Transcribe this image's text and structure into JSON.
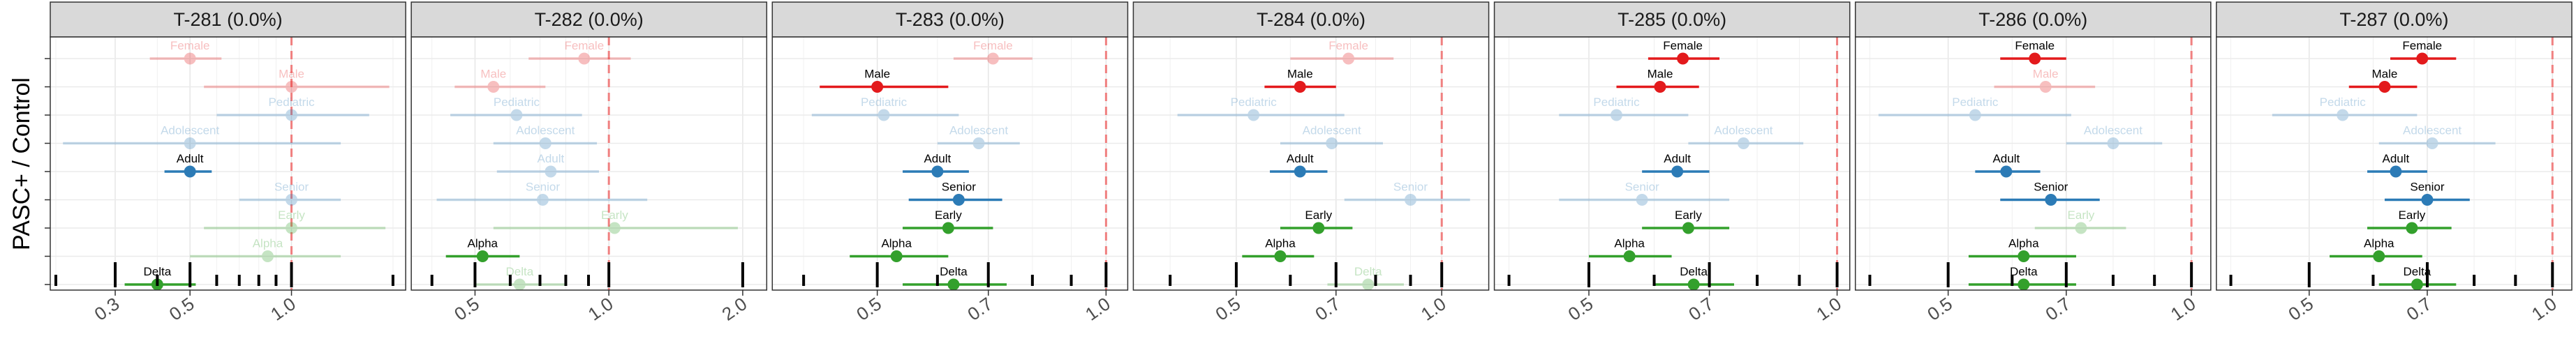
{
  "chart_data": {
    "type": "forest",
    "ylabel": "PASC+ / Control",
    "xscale": "log",
    "reference_line": 1.0,
    "grid": true,
    "categories": [
      "Female",
      "Male",
      "Pediatric",
      "Adolescent",
      "Adult",
      "Senior",
      "Early",
      "Alpha",
      "Delta"
    ],
    "colors": {
      "Female": "#e31a1c",
      "Male": "#e31a1c",
      "Pediatric": "#2c7bb6",
      "Adolescent": "#2c7bb6",
      "Adult": "#2c7bb6",
      "Senior": "#2c7bb6",
      "Early": "#33a02c",
      "Alpha": "#33a02c",
      "Delta": "#33a02c"
    },
    "panels": [
      {
        "title": "T-281 (0.0%)",
        "xlim": [
          0.2,
          2.1
        ],
        "ticks": [
          0.3,
          0.5,
          1.0
        ],
        "tick_labels": [
          "0.3",
          "0.5",
          "1.0"
        ],
        "minor_ticks": [
          0.2,
          0.4,
          0.6,
          0.7,
          0.8,
          0.9,
          2.0
        ],
        "points": [
          {
            "label": "Female",
            "est": 0.5,
            "lo": 0.38,
            "hi": 0.62,
            "sig": false
          },
          {
            "label": "Male",
            "est": 1.0,
            "lo": 0.55,
            "hi": 1.95,
            "sig": false
          },
          {
            "label": "Pediatric",
            "est": 1.0,
            "lo": 0.6,
            "hi": 1.7,
            "sig": false
          },
          {
            "label": "Adolescent",
            "est": 0.5,
            "lo": 0.21,
            "hi": 1.4,
            "sig": false
          },
          {
            "label": "Adult",
            "est": 0.5,
            "lo": 0.42,
            "hi": 0.58,
            "sig": true
          },
          {
            "label": "Senior",
            "est": 1.0,
            "lo": 0.7,
            "hi": 1.4,
            "sig": false
          },
          {
            "label": "Early",
            "est": 1.0,
            "lo": 0.55,
            "hi": 1.9,
            "sig": false
          },
          {
            "label": "Alpha",
            "est": 0.85,
            "lo": 0.5,
            "hi": 1.4,
            "sig": false
          },
          {
            "label": "Delta",
            "est": 0.4,
            "lo": 0.32,
            "hi": 0.52,
            "sig": true
          }
        ]
      },
      {
        "title": "T-282 (0.0%)",
        "xlim": [
          0.37,
          2.2
        ],
        "ticks": [
          0.5,
          1.0,
          2.0
        ],
        "tick_labels": [
          "0.5",
          "1.0",
          "2.0"
        ],
        "minor_ticks": [
          0.4,
          0.6,
          0.7,
          0.8,
          0.9
        ],
        "points": [
          {
            "label": "Female",
            "est": 0.88,
            "lo": 0.66,
            "hi": 1.12,
            "sig": false
          },
          {
            "label": "Male",
            "est": 0.55,
            "lo": 0.45,
            "hi": 0.72,
            "sig": false
          },
          {
            "label": "Pediatric",
            "est": 0.62,
            "lo": 0.44,
            "hi": 0.87,
            "sig": false
          },
          {
            "label": "Adolescent",
            "est": 0.72,
            "lo": 0.55,
            "hi": 0.94,
            "sig": false
          },
          {
            "label": "Adult",
            "est": 0.74,
            "lo": 0.56,
            "hi": 0.95,
            "sig": false
          },
          {
            "label": "Senior",
            "est": 0.71,
            "lo": 0.41,
            "hi": 1.22,
            "sig": false
          },
          {
            "label": "Early",
            "est": 1.03,
            "lo": 0.55,
            "hi": 1.95,
            "sig": false
          },
          {
            "label": "Alpha",
            "est": 0.52,
            "lo": 0.43,
            "hi": 0.63,
            "sig": true
          },
          {
            "label": "Delta",
            "est": 0.63,
            "lo": 0.5,
            "hi": 0.8,
            "sig": false
          }
        ]
      },
      {
        "title": "T-283 (0.0%)",
        "xlim": [
          0.37,
          1.05
        ],
        "ticks": [
          0.5,
          0.7,
          1.0
        ],
        "tick_labels": [
          "0.5",
          "0.7",
          "1.0"
        ],
        "minor_ticks": [
          0.4,
          0.6,
          0.8,
          0.9
        ],
        "points": [
          {
            "label": "Female",
            "est": 0.71,
            "lo": 0.63,
            "hi": 0.8,
            "sig": false
          },
          {
            "label": "Male",
            "est": 0.5,
            "lo": 0.42,
            "hi": 0.62,
            "sig": true
          },
          {
            "label": "Pediatric",
            "est": 0.51,
            "lo": 0.41,
            "hi": 0.64,
            "sig": false
          },
          {
            "label": "Adolescent",
            "est": 0.68,
            "lo": 0.6,
            "hi": 0.77,
            "sig": false
          },
          {
            "label": "Adult",
            "est": 0.6,
            "lo": 0.54,
            "hi": 0.66,
            "sig": true
          },
          {
            "label": "Senior",
            "est": 0.64,
            "lo": 0.55,
            "hi": 0.73,
            "sig": true
          },
          {
            "label": "Early",
            "est": 0.62,
            "lo": 0.54,
            "hi": 0.71,
            "sig": true
          },
          {
            "label": "Alpha",
            "est": 0.53,
            "lo": 0.46,
            "hi": 0.62,
            "sig": true
          },
          {
            "label": "Delta",
            "est": 0.63,
            "lo": 0.54,
            "hi": 0.74,
            "sig": true
          }
        ]
      },
      {
        "title": "T-284 (0.0%)",
        "xlim": [
          0.36,
          1.15
        ],
        "ticks": [
          0.5,
          0.7,
          1.0
        ],
        "tick_labels": [
          "0.5",
          "0.7",
          "1.0"
        ],
        "minor_ticks": [
          0.4,
          0.6,
          0.8,
          0.9
        ],
        "points": [
          {
            "label": "Female",
            "est": 0.73,
            "lo": 0.6,
            "hi": 0.85,
            "sig": false
          },
          {
            "label": "Male",
            "est": 0.62,
            "lo": 0.55,
            "hi": 0.7,
            "sig": true
          },
          {
            "label": "Pediatric",
            "est": 0.53,
            "lo": 0.41,
            "hi": 0.72,
            "sig": false
          },
          {
            "label": "Adolescent",
            "est": 0.69,
            "lo": 0.58,
            "hi": 0.82,
            "sig": false
          },
          {
            "label": "Adult",
            "est": 0.62,
            "lo": 0.56,
            "hi": 0.68,
            "sig": true
          },
          {
            "label": "Senior",
            "est": 0.9,
            "lo": 0.72,
            "hi": 1.1,
            "sig": false
          },
          {
            "label": "Early",
            "est": 0.66,
            "lo": 0.58,
            "hi": 0.74,
            "sig": true
          },
          {
            "label": "Alpha",
            "est": 0.58,
            "lo": 0.51,
            "hi": 0.65,
            "sig": true
          },
          {
            "label": "Delta",
            "est": 0.78,
            "lo": 0.68,
            "hi": 0.88,
            "sig": false
          }
        ]
      },
      {
        "title": "T-285 (0.0%)",
        "xlim": [
          0.39,
          1.02
        ],
        "ticks": [
          0.5,
          0.7,
          1.0
        ],
        "tick_labels": [
          "0.5",
          "0.7",
          "1.0"
        ],
        "minor_ticks": [
          0.4,
          0.6,
          0.8,
          0.9
        ],
        "points": [
          {
            "label": "Female",
            "est": 0.65,
            "lo": 0.59,
            "hi": 0.72,
            "sig": true
          },
          {
            "label": "Male",
            "est": 0.61,
            "lo": 0.54,
            "hi": 0.68,
            "sig": true
          },
          {
            "label": "Pediatric",
            "est": 0.54,
            "lo": 0.46,
            "hi": 0.66,
            "sig": false
          },
          {
            "label": "Adolescent",
            "est": 0.77,
            "lo": 0.66,
            "hi": 0.91,
            "sig": false
          },
          {
            "label": "Adult",
            "est": 0.64,
            "lo": 0.58,
            "hi": 0.7,
            "sig": true
          },
          {
            "label": "Senior",
            "est": 0.58,
            "lo": 0.46,
            "hi": 0.74,
            "sig": false
          },
          {
            "label": "Early",
            "est": 0.66,
            "lo": 0.58,
            "hi": 0.74,
            "sig": true
          },
          {
            "label": "Alpha",
            "est": 0.56,
            "lo": 0.5,
            "hi": 0.63,
            "sig": true
          },
          {
            "label": "Delta",
            "est": 0.67,
            "lo": 0.6,
            "hi": 0.75,
            "sig": true
          }
        ]
      },
      {
        "title": "T-286 (0.0%)",
        "xlim": [
          0.39,
          1.04
        ],
        "ticks": [
          0.5,
          0.7,
          1.0
        ],
        "tick_labels": [
          "0.5",
          "0.7",
          "1.0"
        ],
        "minor_ticks": [
          0.4,
          0.6,
          0.8,
          0.9
        ],
        "points": [
          {
            "label": "Female",
            "est": 0.64,
            "lo": 0.58,
            "hi": 0.7,
            "sig": true
          },
          {
            "label": "Male",
            "est": 0.66,
            "lo": 0.57,
            "hi": 0.76,
            "sig": false
          },
          {
            "label": "Pediatric",
            "est": 0.54,
            "lo": 0.41,
            "hi": 0.71,
            "sig": false
          },
          {
            "label": "Adolescent",
            "est": 0.8,
            "lo": 0.7,
            "hi": 0.92,
            "sig": false
          },
          {
            "label": "Adult",
            "est": 0.59,
            "lo": 0.54,
            "hi": 0.65,
            "sig": true
          },
          {
            "label": "Senior",
            "est": 0.67,
            "lo": 0.58,
            "hi": 0.77,
            "sig": true
          },
          {
            "label": "Early",
            "est": 0.73,
            "lo": 0.64,
            "hi": 0.83,
            "sig": false
          },
          {
            "label": "Alpha",
            "est": 0.62,
            "lo": 0.53,
            "hi": 0.72,
            "sig": true
          },
          {
            "label": "Delta",
            "est": 0.62,
            "lo": 0.53,
            "hi": 0.72,
            "sig": true
          }
        ]
      },
      {
        "title": "T-287 (0.0%)",
        "xlim": [
          0.39,
          1.04
        ],
        "ticks": [
          0.5,
          0.7,
          1.0
        ],
        "tick_labels": [
          "0.5",
          "0.7",
          "1.0"
        ],
        "minor_ticks": [
          0.4,
          0.6,
          0.8,
          0.9
        ],
        "points": [
          {
            "label": "Female",
            "est": 0.69,
            "lo": 0.63,
            "hi": 0.76,
            "sig": true
          },
          {
            "label": "Male",
            "est": 0.62,
            "lo": 0.56,
            "hi": 0.68,
            "sig": true
          },
          {
            "label": "Pediatric",
            "est": 0.55,
            "lo": 0.45,
            "hi": 0.68,
            "sig": false
          },
          {
            "label": "Adolescent",
            "est": 0.71,
            "lo": 0.61,
            "hi": 0.85,
            "sig": false
          },
          {
            "label": "Adult",
            "est": 0.64,
            "lo": 0.59,
            "hi": 0.7,
            "sig": true
          },
          {
            "label": "Senior",
            "est": 0.7,
            "lo": 0.62,
            "hi": 0.79,
            "sig": true
          },
          {
            "label": "Early",
            "est": 0.67,
            "lo": 0.59,
            "hi": 0.75,
            "sig": true
          },
          {
            "label": "Alpha",
            "est": 0.61,
            "lo": 0.53,
            "hi": 0.69,
            "sig": true
          },
          {
            "label": "Delta",
            "est": 0.68,
            "lo": 0.61,
            "hi": 0.76,
            "sig": true
          }
        ]
      }
    ]
  }
}
